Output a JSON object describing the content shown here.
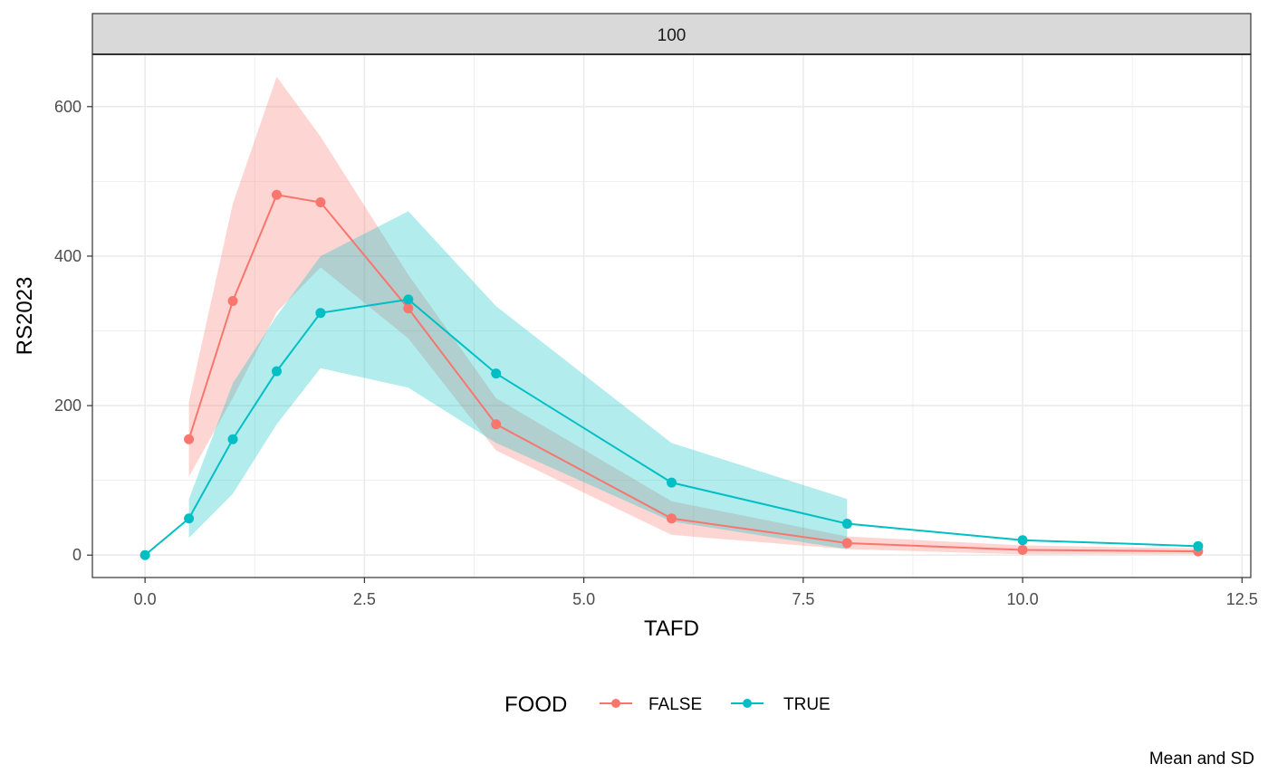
{
  "chart_data": {
    "type": "line",
    "facet_label": "100",
    "xlabel": "TAFD",
    "ylabel": "RS2023",
    "caption": "Mean and SD",
    "xlim": [
      -0.6,
      12.6
    ],
    "ylim": [
      -30,
      670
    ],
    "x_ticks": [
      0,
      2.5,
      5,
      7.5,
      10,
      12.5
    ],
    "x_tick_labels": [
      "0.0",
      "2.5",
      "5.0",
      "7.5",
      "10.0",
      "12.5"
    ],
    "y_ticks": [
      0,
      200,
      400,
      600
    ],
    "y_tick_labels": [
      "0",
      "200",
      "400",
      "600"
    ],
    "grid": true,
    "legend": {
      "title": "FOOD",
      "position": "bottom",
      "entries": [
        "FALSE",
        "TRUE"
      ]
    },
    "series": [
      {
        "name": "FALSE",
        "color": "#F8766D",
        "x": [
          0.5,
          1,
          1.5,
          2,
          3,
          4,
          6,
          8,
          10,
          12
        ],
        "y": [
          155,
          340,
          482,
          472,
          330,
          175,
          49,
          16,
          7,
          5
        ],
        "ribbon_low": [
          105,
          210,
          325,
          385,
          290,
          140,
          27,
          8,
          1,
          1
        ],
        "ribbon_high": [
          205,
          470,
          640,
          560,
          375,
          210,
          72,
          25,
          13,
          9
        ]
      },
      {
        "name": "TRUE",
        "color": "#00BFC4",
        "x": [
          0,
          0.5,
          1,
          1.5,
          2,
          3,
          4,
          6,
          8,
          10,
          12
        ],
        "y": [
          0,
          49,
          155,
          246,
          324,
          342,
          243,
          97,
          42,
          20,
          12
        ],
        "ribbon_x": [
          0.5,
          1,
          1.5,
          2,
          3,
          4,
          6,
          8
        ],
        "ribbon_low": [
          23,
          82,
          175,
          250,
          224,
          150,
          45,
          8
        ],
        "ribbon_high": [
          75,
          230,
          320,
          400,
          460,
          333,
          150,
          75
        ]
      }
    ]
  }
}
